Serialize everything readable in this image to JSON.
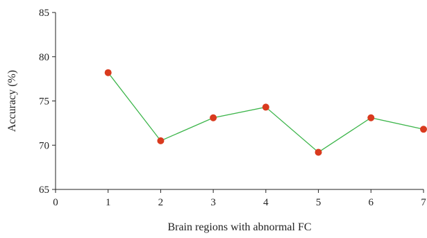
{
  "chart_data": {
    "type": "line",
    "title": "",
    "xlabel": "Brain regions with abnormal FC",
    "ylabel": "Accuracy (%)",
    "xlim": [
      0,
      7
    ],
    "ylim": [
      65,
      85
    ],
    "x_ticks": [
      "0",
      "1",
      "2",
      "3",
      "4",
      "5",
      "6",
      "7"
    ],
    "y_ticks": [
      "65",
      "70",
      "75",
      "80",
      "85"
    ],
    "grid": false,
    "legend": "none",
    "series": [
      {
        "x": [
          1,
          2,
          3,
          4,
          5,
          6,
          7
        ],
        "values": [
          78.2,
          70.5,
          73.1,
          74.3,
          69.2,
          73.1,
          71.8
        ],
        "line_color": "#3cb54a",
        "marker_color": "#d93a1e"
      }
    ]
  }
}
